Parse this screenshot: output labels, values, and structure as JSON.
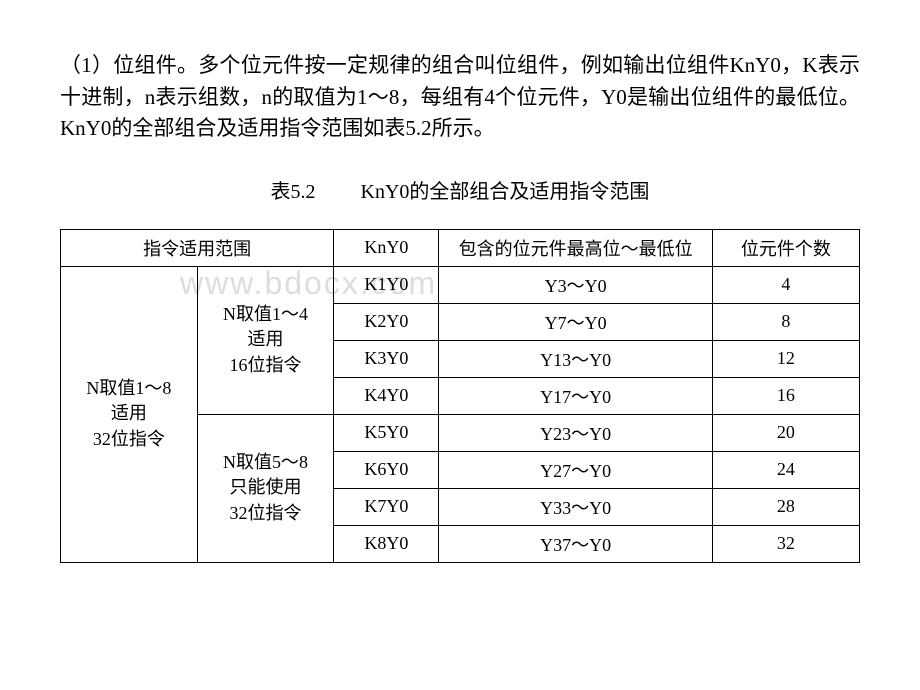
{
  "paragraph": "（1）位组件。多个位元件按一定规律的组合叫位组件，例如输出位组件KnY0，K表示十进制，n表示组数，n的取值为1～8，每组有4个位元件，Y0是输出位组件的最低位。KnY0的全部组合及适用指令范围如表5.2所示。",
  "caption": {
    "label": "表5.2",
    "title": "KnY0的全部组合及适用指令范围"
  },
  "watermark": "www.bdocx.com",
  "table": {
    "headers": {
      "scope": "指令适用范围",
      "kny0": "KnY0",
      "range": "包含的位元件最高位～最低位",
      "count": "位元件个数"
    },
    "outerScope": "N取值1～8\n适用\n32位指令",
    "innerScope1": "N取值1～4\n适用\n16位指令",
    "innerScope2": "N取值5～8\n只能使用\n32位指令",
    "rows": [
      {
        "kny0": "K1Y0",
        "range": "Y3～Y0",
        "count": "4"
      },
      {
        "kny0": "K2Y0",
        "range": "Y7～Y0",
        "count": "8"
      },
      {
        "kny0": "K3Y0",
        "range": "Y13～Y0",
        "count": "12"
      },
      {
        "kny0": "K4Y0",
        "range": "Y17～Y0",
        "count": "16"
      },
      {
        "kny0": "K5Y0",
        "range": "Y23～Y0",
        "count": "20"
      },
      {
        "kny0": "K6Y0",
        "range": "Y27～Y0",
        "count": "24"
      },
      {
        "kny0": "K7Y0",
        "range": "Y33～Y0",
        "count": "28"
      },
      {
        "kny0": "K8Y0",
        "range": "Y37～Y0",
        "count": "32"
      }
    ]
  }
}
